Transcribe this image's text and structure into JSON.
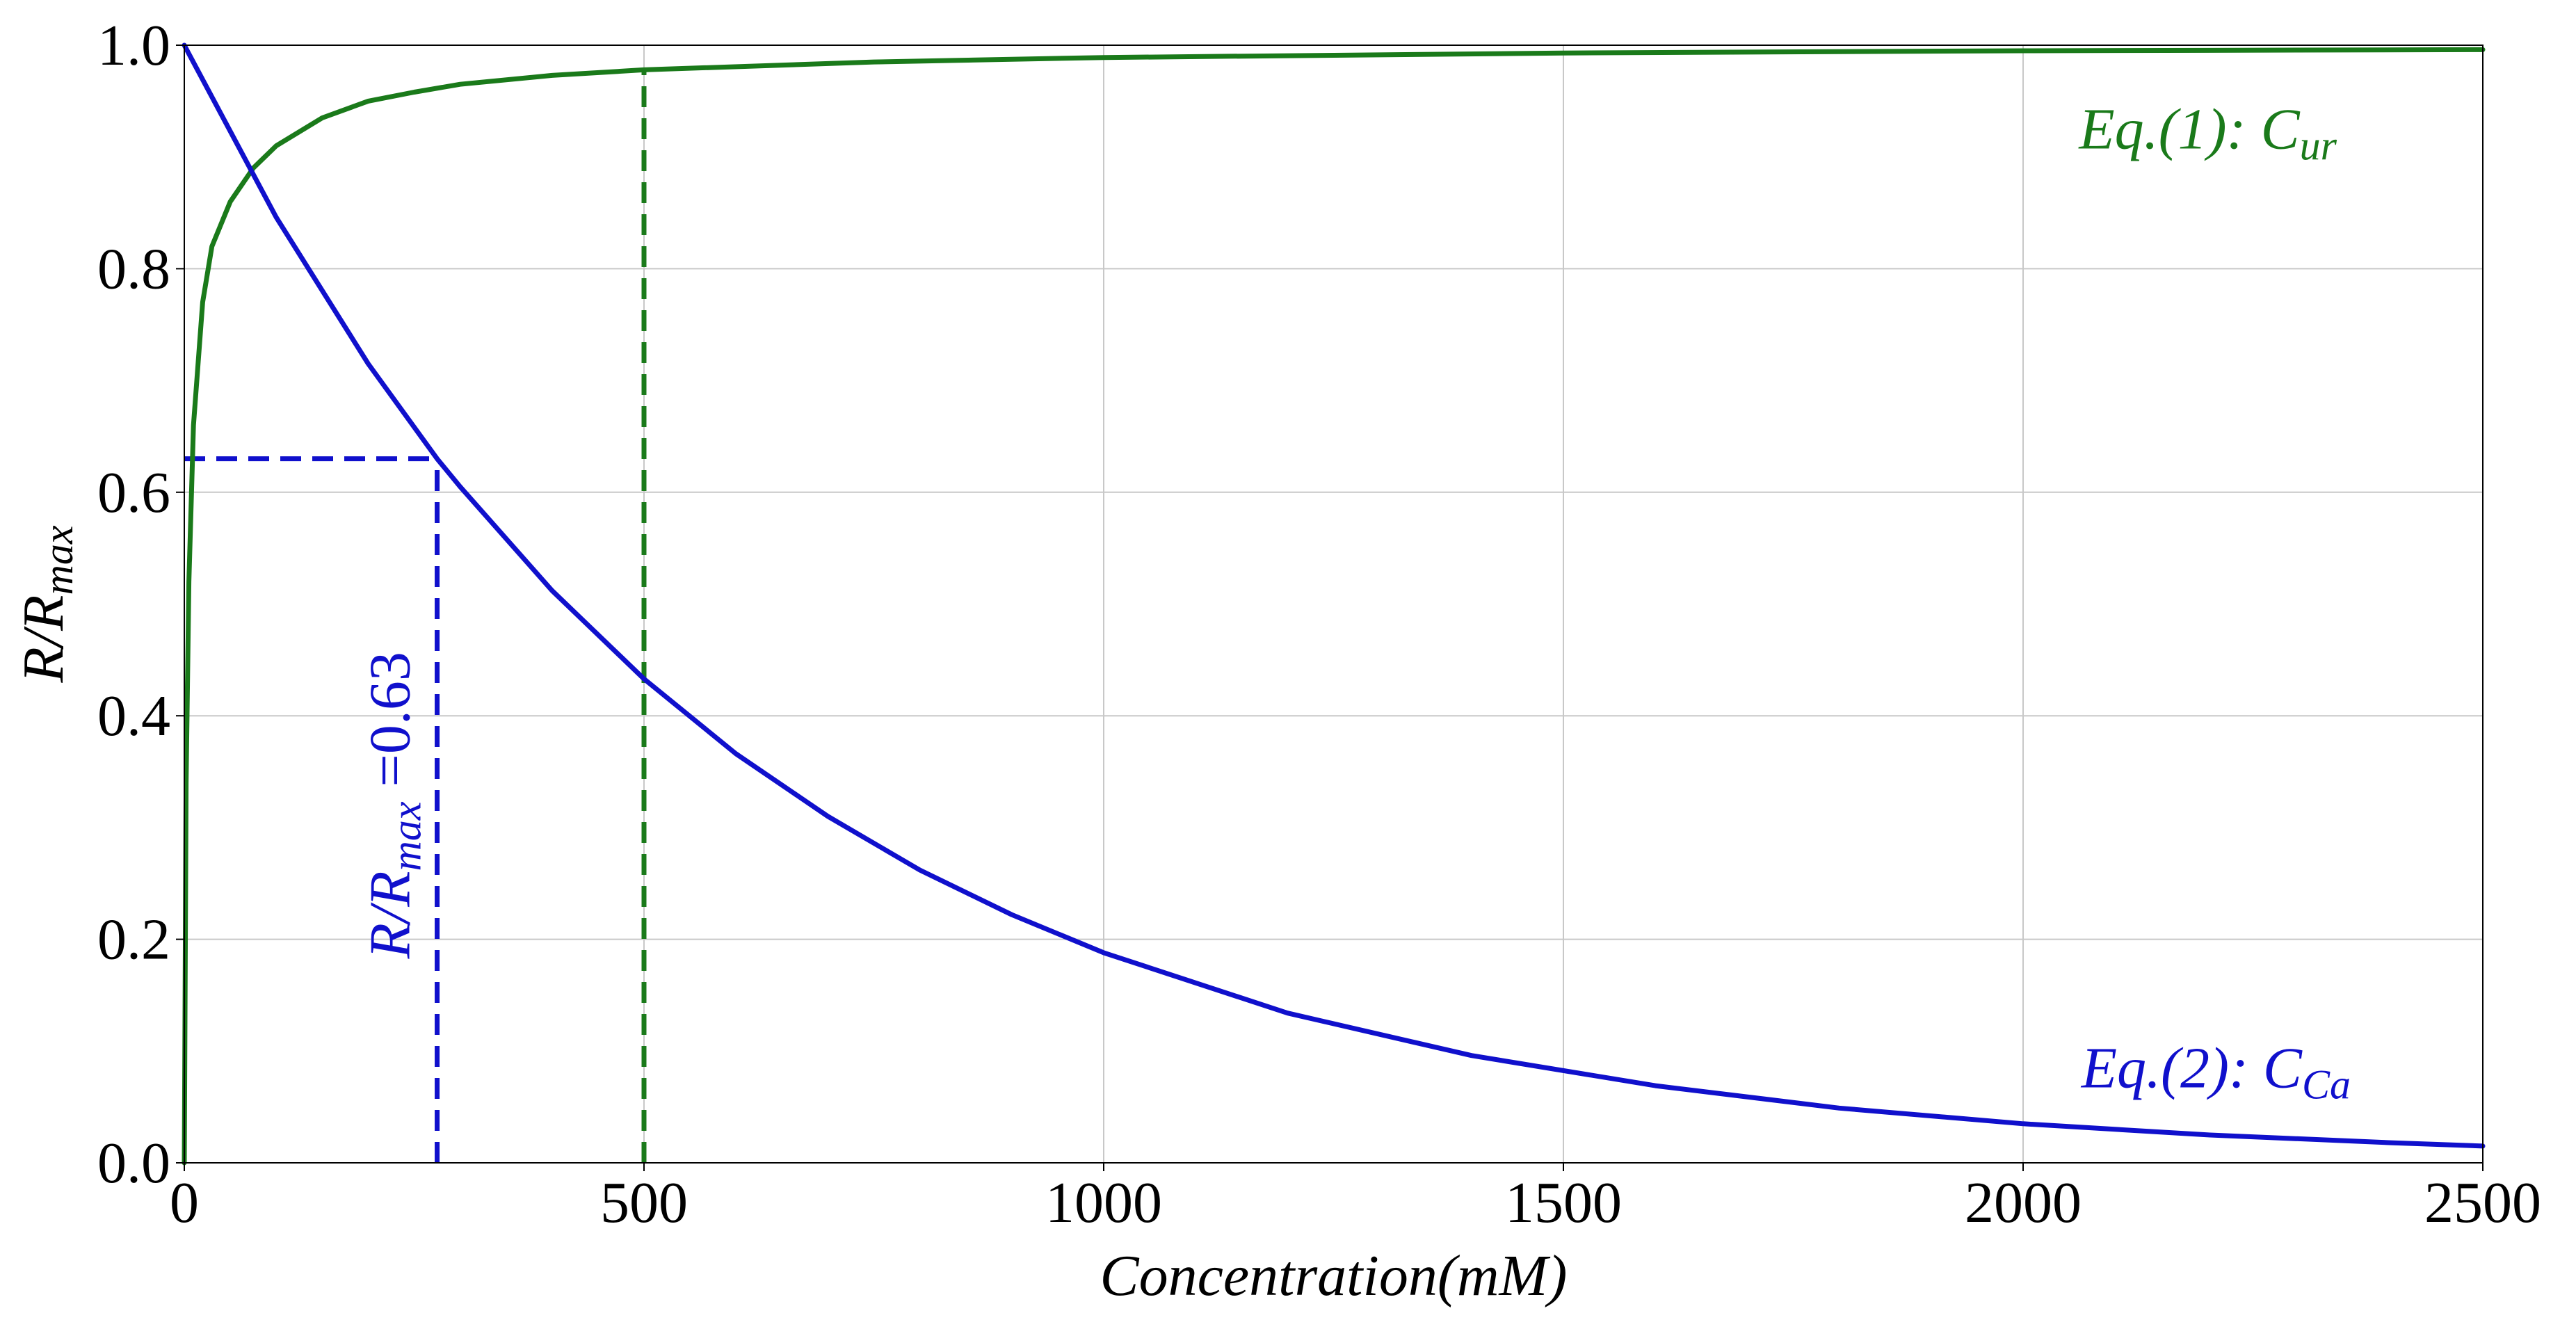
{
  "chart_data": {
    "type": "line",
    "xlabel": "Concentration(mM)",
    "ylabel": "R/R_max",
    "xlim": [
      0,
      2500
    ],
    "ylim": [
      0,
      1.0
    ],
    "xticks": [
      "0",
      "500",
      "1000",
      "1500",
      "2000",
      "2500"
    ],
    "yticks": [
      "0.0",
      "0.2",
      "0.4",
      "0.6",
      "0.8",
      "1.0"
    ],
    "grid": true,
    "colors": {
      "green": "#1a7a1a",
      "blue": "#1010cc"
    },
    "series": [
      {
        "name": "Eq.(1): C_ur",
        "color": "green",
        "x": [
          0,
          2,
          5,
          10,
          20,
          30,
          50,
          75,
          100,
          150,
          200,
          250,
          300,
          400,
          500,
          750,
          1000,
          1500,
          2000,
          2500
        ],
        "y": [
          0.0,
          0.34,
          0.52,
          0.66,
          0.77,
          0.82,
          0.86,
          0.89,
          0.91,
          0.935,
          0.95,
          0.958,
          0.965,
          0.973,
          0.978,
          0.985,
          0.989,
          0.993,
          0.995,
          0.996
        ]
      },
      {
        "name": "Eq.(2): C_Ca",
        "color": "blue",
        "x": [
          0,
          100,
          200,
          275,
          300,
          400,
          500,
          600,
          700,
          800,
          900,
          1000,
          1200,
          1400,
          1600,
          1800,
          2000,
          2200,
          2400,
          2500
        ],
        "y": [
          1.0,
          0.846,
          0.715,
          0.63,
          0.605,
          0.512,
          0.433,
          0.366,
          0.31,
          0.262,
          0.222,
          0.188,
          0.134,
          0.096,
          0.069,
          0.049,
          0.035,
          0.025,
          0.018,
          0.015
        ]
      }
    ],
    "reference_lines": [
      {
        "color": "blue",
        "style": "dashed",
        "x": 275,
        "y": 0.63
      },
      {
        "color": "green",
        "style": "dashed",
        "x": 500,
        "y": 0.978
      }
    ],
    "annotations": {
      "eq1": {
        "main": "Eq.(1): C",
        "sub": "ur",
        "color": "green",
        "x": 2500,
        "y": 0.92
      },
      "eq2": {
        "main": "Eq.(2): C",
        "sub": "Ca",
        "color": "blue",
        "x": 2500,
        "y": 0.08
      },
      "threshold": {
        "main": "R/R",
        "sub": "max",
        "tail": " =0.63",
        "color": "blue",
        "x": 275,
        "y": 0.32
      }
    }
  }
}
